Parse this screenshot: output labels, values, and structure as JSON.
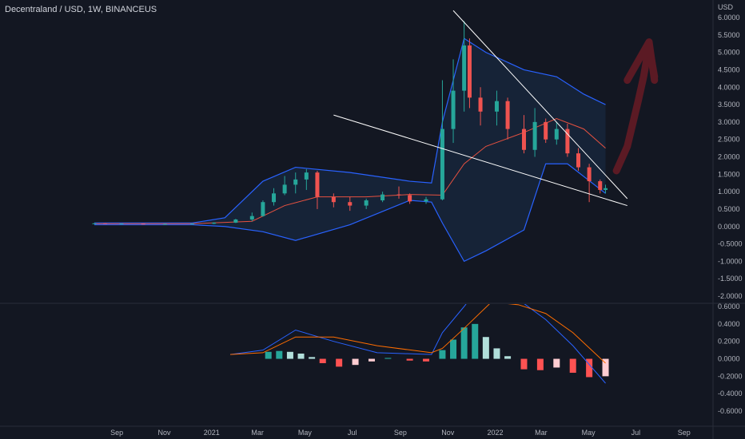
{
  "header": {
    "title": "Decentraland / USD, 1W, BINANCEUS"
  },
  "chart_data": [
    {
      "type": "candlestick",
      "name": "price",
      "y_unit": "USD",
      "ylim": [
        -2.0,
        6.0
      ],
      "ticks": [
        "6.0000",
        "5.5000",
        "5.0000",
        "4.5000",
        "4.0000",
        "3.5000",
        "3.0000",
        "2.5000",
        "2.0000",
        "1.5000",
        "1.0000",
        "0.5000",
        "0.0000",
        "-0.5000",
        "-1.0000",
        "-1.5000",
        "-2.0000"
      ],
      "x_labels": [
        "Sep",
        "Nov",
        "2021",
        "Mar",
        "May",
        "Jul",
        "Sep",
        "Nov",
        "2022",
        "Mar",
        "May",
        "Jul",
        "Sep"
      ],
      "colors": {
        "up": "#26a69a",
        "down": "#ef5350",
        "bb": "#2962ff",
        "bb_fill": "#1e3a5f",
        "ma": "#e65140",
        "trend": "#ffffff",
        "arrow": "#5b1a24"
      },
      "candles": [
        {
          "date": "2020-08-03",
          "o": 0.09,
          "h": 0.1,
          "l": 0.08,
          "c": 0.09
        },
        {
          "date": "2020-08-17",
          "o": 0.09,
          "h": 0.1,
          "l": 0.08,
          "c": 0.08
        },
        {
          "date": "2020-09-07",
          "o": 0.08,
          "h": 0.09,
          "l": 0.07,
          "c": 0.08
        },
        {
          "date": "2020-10-05",
          "o": 0.08,
          "h": 0.09,
          "l": 0.07,
          "c": 0.07
        },
        {
          "date": "2020-11-02",
          "o": 0.07,
          "h": 0.08,
          "l": 0.06,
          "c": 0.07
        },
        {
          "date": "2020-12-07",
          "o": 0.07,
          "h": 0.09,
          "l": 0.06,
          "c": 0.08
        },
        {
          "date": "2021-01-04",
          "o": 0.08,
          "h": 0.12,
          "l": 0.07,
          "c": 0.11
        },
        {
          "date": "2021-02-01",
          "o": 0.11,
          "h": 0.22,
          "l": 0.1,
          "c": 0.2
        },
        {
          "date": "2021-02-22",
          "o": 0.2,
          "h": 0.4,
          "l": 0.15,
          "c": 0.3
        },
        {
          "date": "2021-03-08",
          "o": 0.3,
          "h": 0.75,
          "l": 0.28,
          "c": 0.7
        },
        {
          "date": "2021-03-22",
          "o": 0.7,
          "h": 1.1,
          "l": 0.6,
          "c": 0.95
        },
        {
          "date": "2021-04-05",
          "o": 0.95,
          "h": 1.45,
          "l": 0.9,
          "c": 1.2
        },
        {
          "date": "2021-04-19",
          "o": 1.2,
          "h": 1.55,
          "l": 0.95,
          "c": 1.35
        },
        {
          "date": "2021-05-03",
          "o": 1.35,
          "h": 1.65,
          "l": 1.05,
          "c": 1.55
        },
        {
          "date": "2021-05-17",
          "o": 1.55,
          "h": 1.6,
          "l": 0.5,
          "c": 0.85
        },
        {
          "date": "2021-06-07",
          "o": 0.85,
          "h": 0.95,
          "l": 0.55,
          "c": 0.7
        },
        {
          "date": "2021-06-28",
          "o": 0.7,
          "h": 0.85,
          "l": 0.45,
          "c": 0.6
        },
        {
          "date": "2021-07-19",
          "o": 0.6,
          "h": 0.8,
          "l": 0.5,
          "c": 0.75
        },
        {
          "date": "2021-08-09",
          "o": 0.75,
          "h": 1.0,
          "l": 0.7,
          "c": 0.92
        },
        {
          "date": "2021-08-30",
          "o": 0.92,
          "h": 1.15,
          "l": 0.8,
          "c": 0.9
        },
        {
          "date": "2021-09-13",
          "o": 0.9,
          "h": 0.95,
          "l": 0.65,
          "c": 0.72
        },
        {
          "date": "2021-10-04",
          "o": 0.72,
          "h": 0.85,
          "l": 0.65,
          "c": 0.78
        },
        {
          "date": "2021-10-25",
          "o": 0.78,
          "h": 4.2,
          "l": 0.75,
          "c": 2.8
        },
        {
          "date": "2021-11-08",
          "o": 2.8,
          "h": 4.8,
          "l": 2.4,
          "c": 3.9
        },
        {
          "date": "2021-11-22",
          "o": 3.9,
          "h": 5.9,
          "l": 3.3,
          "c": 5.2
        },
        {
          "date": "2021-11-29",
          "o": 5.2,
          "h": 5.4,
          "l": 3.4,
          "c": 3.7
        },
        {
          "date": "2021-12-13",
          "o": 3.7,
          "h": 4.0,
          "l": 2.9,
          "c": 3.3
        },
        {
          "date": "2022-01-03",
          "o": 3.3,
          "h": 3.9,
          "l": 2.9,
          "c": 3.6
        },
        {
          "date": "2022-01-17",
          "o": 3.6,
          "h": 3.7,
          "l": 2.5,
          "c": 2.8
        },
        {
          "date": "2022-02-07",
          "o": 2.8,
          "h": 3.2,
          "l": 2.1,
          "c": 2.2
        },
        {
          "date": "2022-02-21",
          "o": 2.2,
          "h": 3.4,
          "l": 2.0,
          "c": 3.0
        },
        {
          "date": "2022-03-07",
          "o": 3.0,
          "h": 3.1,
          "l": 2.4,
          "c": 2.5
        },
        {
          "date": "2022-03-21",
          "o": 2.5,
          "h": 3.0,
          "l": 2.35,
          "c": 2.8
        },
        {
          "date": "2022-04-04",
          "o": 2.8,
          "h": 2.95,
          "l": 2.0,
          "c": 2.1
        },
        {
          "date": "2022-04-18",
          "o": 2.1,
          "h": 2.25,
          "l": 1.6,
          "c": 1.7
        },
        {
          "date": "2022-05-02",
          "o": 1.7,
          "h": 1.8,
          "l": 0.7,
          "c": 1.3
        },
        {
          "date": "2022-05-16",
          "o": 1.3,
          "h": 1.35,
          "l": 0.95,
          "c": 1.05
        },
        {
          "date": "2022-05-23",
          "o": 1.05,
          "h": 1.2,
          "l": 0.95,
          "c": 1.1
        }
      ],
      "bb_upper": [
        {
          "date": "2020-08-03",
          "v": 0.1
        },
        {
          "date": "2020-12-07",
          "v": 0.1
        },
        {
          "date": "2021-01-18",
          "v": 0.25
        },
        {
          "date": "2021-03-08",
          "v": 1.3
        },
        {
          "date": "2021-04-19",
          "v": 1.7
        },
        {
          "date": "2021-06-28",
          "v": 1.55
        },
        {
          "date": "2021-09-13",
          "v": 1.3
        },
        {
          "date": "2021-10-11",
          "v": 1.25
        },
        {
          "date": "2021-10-25",
          "v": 3.0
        },
        {
          "date": "2021-11-22",
          "v": 5.4
        },
        {
          "date": "2021-12-20",
          "v": 5.0
        },
        {
          "date": "2022-02-07",
          "v": 4.5
        },
        {
          "date": "2022-03-21",
          "v": 4.3
        },
        {
          "date": "2022-04-25",
          "v": 3.8
        },
        {
          "date": "2022-05-23",
          "v": 3.5
        }
      ],
      "bb_lower": [
        {
          "date": "2020-08-03",
          "v": 0.05
        },
        {
          "date": "2020-12-07",
          "v": 0.05
        },
        {
          "date": "2021-01-18",
          "v": 0.0
        },
        {
          "date": "2021-03-08",
          "v": -0.15
        },
        {
          "date": "2021-04-19",
          "v": -0.4
        },
        {
          "date": "2021-06-28",
          "v": 0.05
        },
        {
          "date": "2021-09-13",
          "v": 0.75
        },
        {
          "date": "2021-10-11",
          "v": 0.7
        },
        {
          "date": "2021-10-25",
          "v": 0.1
        },
        {
          "date": "2021-11-22",
          "v": -1.0
        },
        {
          "date": "2021-12-20",
          "v": -0.7
        },
        {
          "date": "2022-02-07",
          "v": -0.1
        },
        {
          "date": "2022-03-07",
          "v": 1.8
        },
        {
          "date": "2022-04-04",
          "v": 1.8
        },
        {
          "date": "2022-05-23",
          "v": 0.95
        }
      ],
      "ma": [
        {
          "date": "2020-08-03",
          "v": 0.08
        },
        {
          "date": "2020-12-07",
          "v": 0.08
        },
        {
          "date": "2021-02-22",
          "v": 0.15
        },
        {
          "date": "2021-04-05",
          "v": 0.6
        },
        {
          "date": "2021-05-17",
          "v": 0.85
        },
        {
          "date": "2021-07-19",
          "v": 0.85
        },
        {
          "date": "2021-09-13",
          "v": 0.92
        },
        {
          "date": "2021-10-25",
          "v": 0.9
        },
        {
          "date": "2021-11-22",
          "v": 1.8
        },
        {
          "date": "2021-12-20",
          "v": 2.3
        },
        {
          "date": "2022-02-07",
          "v": 2.7
        },
        {
          "date": "2022-03-21",
          "v": 3.1
        },
        {
          "date": "2022-04-25",
          "v": 2.8
        },
        {
          "date": "2022-05-23",
          "v": 2.25
        }
      ],
      "trendlines": [
        {
          "from": {
            "date": "2021-06-07",
            "v": 3.2
          },
          "to": {
            "date": "2022-06-20",
            "v": 0.6
          }
        },
        {
          "from": {
            "date": "2021-11-08",
            "v": 6.2
          },
          "to": {
            "date": "2022-06-20",
            "v": 0.8
          }
        }
      ],
      "arrow": [
        {
          "date": "2022-06-06",
          "v": 1.6
        },
        {
          "date": "2022-06-20",
          "v": 2.3
        },
        {
          "date": "2022-07-04",
          "v": 3.6
        },
        {
          "date": "2022-07-11",
          "v": 4.3
        },
        {
          "date": "2022-07-18",
          "v": 5.2
        },
        {
          "date": "2022-07-25",
          "v": 4.3
        }
      ],
      "arrow_head": [
        {
          "date": "2022-06-20",
          "v": 4.2
        },
        {
          "date": "2022-07-18",
          "v": 5.3
        },
        {
          "date": "2022-07-25",
          "v": 4.2
        }
      ]
    },
    {
      "type": "bar+line",
      "name": "macd",
      "ylim": [
        -0.7,
        0.6
      ],
      "ticks": [
        "0.6000",
        "0.4000",
        "0.2000",
        "0.0000",
        "-0.2000",
        "-0.4000",
        "-0.6000"
      ],
      "colors": {
        "pos_up": "#b2dfdb",
        "pos_down": "#26a69a",
        "neg_down": "#ff5252",
        "neg_up": "#ffcdd2",
        "macd": "#2962ff",
        "signal": "#ff6d00"
      },
      "histogram": [
        {
          "date": "2021-03-15",
          "v": 0.08
        },
        {
          "date": "2021-03-29",
          "v": 0.09
        },
        {
          "date": "2021-04-12",
          "v": 0.08
        },
        {
          "date": "2021-04-26",
          "v": 0.06
        },
        {
          "date": "2021-05-10",
          "v": 0.02
        },
        {
          "date": "2021-05-24",
          "v": -0.05
        },
        {
          "date": "2021-06-14",
          "v": -0.09
        },
        {
          "date": "2021-07-05",
          "v": -0.07
        },
        {
          "date": "2021-07-26",
          "v": -0.03
        },
        {
          "date": "2021-08-16",
          "v": 0.01
        },
        {
          "date": "2021-09-13",
          "v": -0.02
        },
        {
          "date": "2021-10-04",
          "v": -0.03
        },
        {
          "date": "2021-10-25",
          "v": 0.1
        },
        {
          "date": "2021-11-08",
          "v": 0.22
        },
        {
          "date": "2021-11-22",
          "v": 0.36
        },
        {
          "date": "2021-12-06",
          "v": 0.4
        },
        {
          "date": "2021-12-20",
          "v": 0.25
        },
        {
          "date": "2022-01-03",
          "v": 0.12
        },
        {
          "date": "2022-01-17",
          "v": 0.03
        },
        {
          "date": "2022-02-07",
          "v": -0.12
        },
        {
          "date": "2022-02-28",
          "v": -0.13
        },
        {
          "date": "2022-03-21",
          "v": -0.1
        },
        {
          "date": "2022-04-11",
          "v": -0.16
        },
        {
          "date": "2022-05-02",
          "v": -0.21
        },
        {
          "date": "2022-05-23",
          "v": -0.2
        }
      ],
      "macd_line": [
        {
          "date": "2021-01-25",
          "v": 0.05
        },
        {
          "date": "2021-03-08",
          "v": 0.1
        },
        {
          "date": "2021-04-19",
          "v": 0.33
        },
        {
          "date": "2021-06-07",
          "v": 0.2
        },
        {
          "date": "2021-08-02",
          "v": 0.07
        },
        {
          "date": "2021-10-11",
          "v": 0.05
        },
        {
          "date": "2021-10-25",
          "v": 0.3
        },
        {
          "date": "2021-11-22",
          "v": 0.6
        },
        {
          "date": "2021-12-27",
          "v": 1.0
        },
        {
          "date": "2022-01-31",
          "v": 0.68
        },
        {
          "date": "2022-03-07",
          "v": 0.45
        },
        {
          "date": "2022-04-11",
          "v": 0.15
        },
        {
          "date": "2022-05-23",
          "v": -0.28
        }
      ],
      "signal_line": [
        {
          "date": "2021-01-25",
          "v": 0.05
        },
        {
          "date": "2021-03-08",
          "v": 0.07
        },
        {
          "date": "2021-04-19",
          "v": 0.25
        },
        {
          "date": "2021-06-07",
          "v": 0.25
        },
        {
          "date": "2021-08-02",
          "v": 0.15
        },
        {
          "date": "2021-10-11",
          "v": 0.07
        },
        {
          "date": "2021-10-25",
          "v": 0.12
        },
        {
          "date": "2021-11-22",
          "v": 0.35
        },
        {
          "date": "2021-12-27",
          "v": 0.65
        },
        {
          "date": "2022-01-31",
          "v": 0.62
        },
        {
          "date": "2022-03-07",
          "v": 0.52
        },
        {
          "date": "2022-04-11",
          "v": 0.3
        },
        {
          "date": "2022-05-23",
          "v": -0.05
        }
      ]
    }
  ]
}
